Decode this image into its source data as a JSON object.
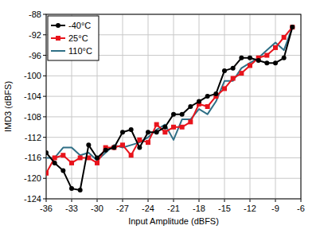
{
  "chart_data": {
    "type": "line",
    "x_label": "Input Amplitude (dBFS)",
    "y_label": "IMD3 (dBFS)",
    "x": [
      -36,
      -35,
      -34,
      -33,
      -32,
      -31,
      -30,
      -29,
      -28,
      -27,
      -26,
      -25,
      -24,
      -23,
      -22,
      -21,
      -20,
      -19,
      -18,
      -17,
      -16,
      -15,
      -14,
      -13,
      -12,
      -11,
      -10,
      -9,
      -8,
      -7
    ],
    "series": [
      {
        "name": "-40°C",
        "color": "#000000",
        "marker": "circle",
        "values": [
          -115,
          -117,
          -118.5,
          -122,
          -122.3,
          -113.5,
          -116,
          -114.5,
          -114,
          -111,
          -110.5,
          -114,
          -111,
          -111,
          -110,
          -107.5,
          -107.5,
          -106,
          -105,
          -104,
          -103.5,
          -99,
          -98.5,
          -96.5,
          -96.5,
          -97,
          -97.5,
          -97.5,
          -96.5,
          -90.5
        ]
      },
      {
        "name": "25°C",
        "color": "#e8141c",
        "marker": "square",
        "values": [
          -119,
          -116,
          -115.5,
          -117,
          -116,
          -116,
          -117,
          -114,
          -114,
          -113.5,
          -115.5,
          -112.5,
          -113,
          -109.5,
          -111,
          -110,
          -110,
          -109,
          -105.5,
          -106,
          -104,
          -102.5,
          -100.5,
          -99.5,
          -98,
          -96.5,
          -96,
          -94.5,
          -92.5,
          -90.5
        ]
      },
      {
        "name": "110°C",
        "color": "#2f6f86",
        "marker": "none",
        "values": [
          -116,
          -116,
          -114,
          -114,
          -115.5,
          -115,
          -116.5,
          -115,
          -113.5,
          -114,
          -113.5,
          -113,
          -112,
          -110.5,
          -109.5,
          -112.5,
          -108.5,
          -108.5,
          -106.5,
          -107.5,
          -105,
          -101,
          -101,
          -98.5,
          -97.5,
          -96.5,
          -95,
          -93.5,
          -95,
          -90.5
        ]
      }
    ],
    "xlim": [
      -36,
      -6
    ],
    "xticks": [
      -36,
      -33,
      -30,
      -27,
      -24,
      -21,
      -18,
      -15,
      -12,
      -9,
      -6
    ],
    "ylim": [
      -124,
      -88
    ],
    "yticks": [
      -124,
      -120,
      -116,
      -112,
      -108,
      -104,
      -100,
      -96,
      -92,
      -88
    ],
    "grid": true,
    "legend": "upper left"
  }
}
